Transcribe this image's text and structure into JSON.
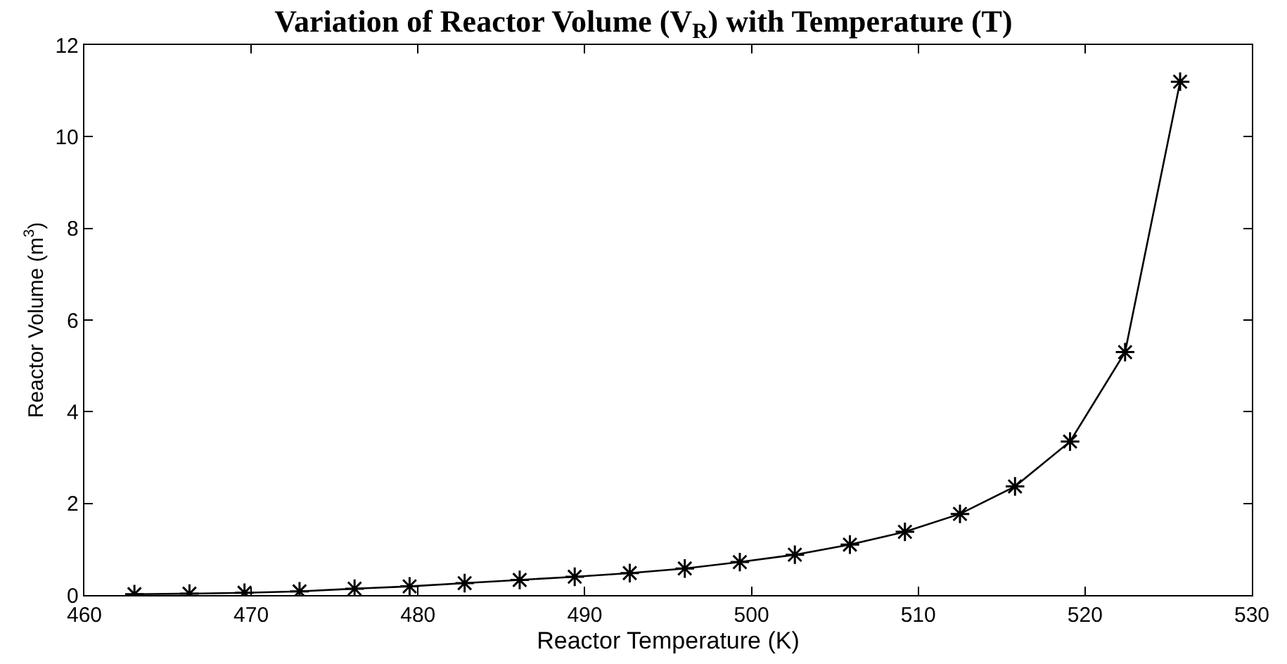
{
  "chart_data": {
    "type": "line",
    "title": "Variation of Reactor Volume (V$_{R}$) with Temperature (T)",
    "xlabel": "Reactor Temperature (K)",
    "ylabel": "Reactor Volume (m$^{3}$)",
    "x": [
      463.0,
      466.3,
      469.6,
      472.9,
      476.2,
      479.5,
      482.8,
      486.1,
      489.4,
      492.7,
      496.0,
      499.3,
      502.6,
      505.9,
      509.2,
      512.5,
      515.8,
      519.1,
      522.4,
      525.7
    ],
    "series": [
      {
        "color": "#000000",
        "values": [
          0.02,
          0.03,
          0.05,
          0.08,
          0.14,
          0.19,
          0.26,
          0.33,
          0.4,
          0.48,
          0.58,
          0.72,
          0.88,
          1.1,
          1.38,
          1.77,
          2.37,
          3.35,
          5.3,
          11.2
        ]
      }
    ],
    "xlim": [
      460,
      530
    ],
    "xticks": [
      460,
      470,
      480,
      490,
      500,
      510,
      520,
      530
    ],
    "ylim": [
      0,
      12
    ],
    "yticks": [
      0,
      2,
      4,
      6,
      8,
      10,
      12
    ],
    "marker": "cross",
    "line_style": "solid"
  }
}
